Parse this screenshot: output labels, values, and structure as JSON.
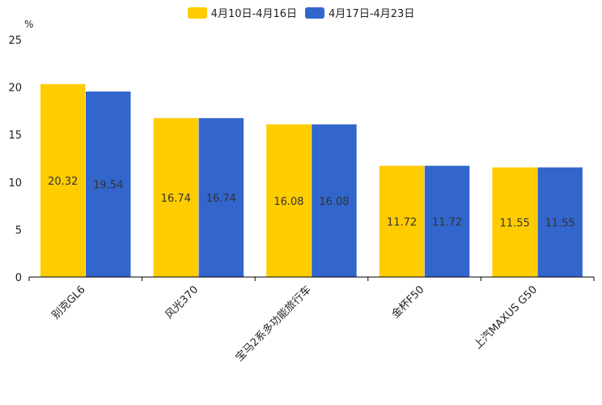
{
  "chart_data": {
    "type": "bar",
    "unit_label": "%",
    "categories": [
      "别克GL6",
      "风光370",
      "宝马2系多功能旅行车",
      "金杯F50",
      "上汽MAXUS G50"
    ],
    "series": [
      {
        "name": "4月10日-4月16日",
        "color": "#ffcc00",
        "values": [
          20.32,
          16.74,
          16.08,
          11.72,
          11.55
        ]
      },
      {
        "name": "4月17日-4月23日",
        "color": "#3366cc",
        "values": [
          19.54,
          16.74,
          16.08,
          11.72,
          11.55
        ]
      }
    ],
    "value_labels": [
      [
        "20.32",
        "16.74",
        "16.08",
        "11.72",
        "11.55"
      ],
      [
        "19.54",
        "16.74",
        "16.08",
        "11.72",
        "11.55"
      ]
    ],
    "y_ticks": [
      "0",
      "5",
      "10",
      "15",
      "20",
      "25"
    ],
    "ylim": [
      0,
      25
    ],
    "legend_position": "top-center",
    "grid": false
  }
}
